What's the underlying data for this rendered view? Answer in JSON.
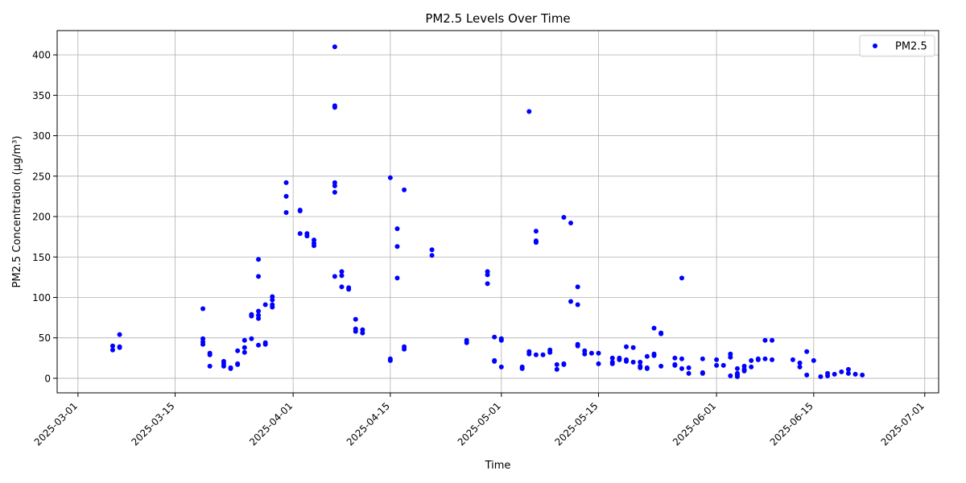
{
  "chart_data": {
    "type": "scatter",
    "title": "PM2.5 Levels Over Time",
    "xlabel": "Time",
    "ylabel": "PM2.5 Concentration (µg/m³)",
    "x_type": "date",
    "xlim": [
      "2025-02-26",
      "2025-07-03"
    ],
    "ylim": [
      -18,
      430
    ],
    "x_ticks": [
      "2025-03-01",
      "2025-03-15",
      "2025-04-01",
      "2025-04-15",
      "2025-05-01",
      "2025-05-15",
      "2025-06-01",
      "2025-06-15",
      "2025-07-01"
    ],
    "y_ticks": [
      0,
      50,
      100,
      150,
      200,
      250,
      300,
      350,
      400
    ],
    "grid": true,
    "legend_position": "top-right",
    "series": [
      {
        "name": "PM2.5",
        "color": "#0000ff",
        "marker": "circle",
        "points": [
          [
            "2025-03-06",
            35
          ],
          [
            "2025-03-06",
            40
          ],
          [
            "2025-03-07",
            39
          ],
          [
            "2025-03-07",
            38
          ],
          [
            "2025-03-07",
            54
          ],
          [
            "2025-03-19",
            86
          ],
          [
            "2025-03-19",
            49
          ],
          [
            "2025-03-19",
            45
          ],
          [
            "2025-03-19",
            42
          ],
          [
            "2025-03-20",
            31
          ],
          [
            "2025-03-20",
            29
          ],
          [
            "2025-03-20",
            15
          ],
          [
            "2025-03-22",
            15
          ],
          [
            "2025-03-22",
            18
          ],
          [
            "2025-03-22",
            21
          ],
          [
            "2025-03-23",
            13
          ],
          [
            "2025-03-23",
            12
          ],
          [
            "2025-03-24",
            34
          ],
          [
            "2025-03-24",
            17
          ],
          [
            "2025-03-24",
            18
          ],
          [
            "2025-03-25",
            47
          ],
          [
            "2025-03-25",
            38
          ],
          [
            "2025-03-25",
            32
          ],
          [
            "2025-03-26",
            79
          ],
          [
            "2025-03-26",
            77
          ],
          [
            "2025-03-26",
            49
          ],
          [
            "2025-03-27",
            147
          ],
          [
            "2025-03-27",
            126
          ],
          [
            "2025-03-27",
            83
          ],
          [
            "2025-03-27",
            78
          ],
          [
            "2025-03-27",
            74
          ],
          [
            "2025-03-27",
            41
          ],
          [
            "2025-03-28",
            91
          ],
          [
            "2025-03-28",
            44
          ],
          [
            "2025-03-28",
            42
          ],
          [
            "2025-03-29",
            101
          ],
          [
            "2025-03-29",
            97
          ],
          [
            "2025-03-29",
            91
          ],
          [
            "2025-03-29",
            88
          ],
          [
            "2025-03-31",
            242
          ],
          [
            "2025-03-31",
            225
          ],
          [
            "2025-03-31",
            205
          ],
          [
            "2025-04-02",
            208
          ],
          [
            "2025-04-02",
            207
          ],
          [
            "2025-04-02",
            179
          ],
          [
            "2025-04-03",
            179
          ],
          [
            "2025-04-03",
            176
          ],
          [
            "2025-04-04",
            171
          ],
          [
            "2025-04-04",
            167
          ],
          [
            "2025-04-04",
            164
          ],
          [
            "2025-04-07",
            410
          ],
          [
            "2025-04-07",
            337
          ],
          [
            "2025-04-07",
            335
          ],
          [
            "2025-04-07",
            242
          ],
          [
            "2025-04-07",
            238
          ],
          [
            "2025-04-07",
            230
          ],
          [
            "2025-04-07",
            126
          ],
          [
            "2025-04-08",
            132
          ],
          [
            "2025-04-08",
            127
          ],
          [
            "2025-04-08",
            113
          ],
          [
            "2025-04-09",
            112
          ],
          [
            "2025-04-09",
            110
          ],
          [
            "2025-04-10",
            73
          ],
          [
            "2025-04-10",
            61
          ],
          [
            "2025-04-10",
            58
          ],
          [
            "2025-04-11",
            60
          ],
          [
            "2025-04-11",
            56
          ],
          [
            "2025-04-15",
            248
          ],
          [
            "2025-04-15",
            24
          ],
          [
            "2025-04-15",
            22
          ],
          [
            "2025-04-16",
            185
          ],
          [
            "2025-04-16",
            163
          ],
          [
            "2025-04-16",
            124
          ],
          [
            "2025-04-17",
            233
          ],
          [
            "2025-04-17",
            39
          ],
          [
            "2025-04-17",
            36
          ],
          [
            "2025-04-21",
            159
          ],
          [
            "2025-04-21",
            152
          ],
          [
            "2025-04-26",
            47
          ],
          [
            "2025-04-26",
            44
          ],
          [
            "2025-04-29",
            132
          ],
          [
            "2025-04-29",
            128
          ],
          [
            "2025-04-29",
            117
          ],
          [
            "2025-04-30",
            51
          ],
          [
            "2025-04-30",
            22
          ],
          [
            "2025-04-30",
            21
          ],
          [
            "2025-05-01",
            49
          ],
          [
            "2025-05-01",
            47
          ],
          [
            "2025-05-01",
            14
          ],
          [
            "2025-05-04",
            14
          ],
          [
            "2025-05-04",
            12
          ],
          [
            "2025-05-05",
            330
          ],
          [
            "2025-05-05",
            33
          ],
          [
            "2025-05-05",
            30
          ],
          [
            "2025-05-06",
            182
          ],
          [
            "2025-05-06",
            170
          ],
          [
            "2025-05-06",
            168
          ],
          [
            "2025-05-06",
            29
          ],
          [
            "2025-05-07",
            29
          ],
          [
            "2025-05-08",
            35
          ],
          [
            "2025-05-08",
            32
          ],
          [
            "2025-05-09",
            17
          ],
          [
            "2025-05-09",
            11
          ],
          [
            "2025-05-10",
            199
          ],
          [
            "2025-05-10",
            18
          ],
          [
            "2025-05-10",
            17
          ],
          [
            "2025-05-11",
            192
          ],
          [
            "2025-05-11",
            95
          ],
          [
            "2025-05-12",
            113
          ],
          [
            "2025-05-12",
            91
          ],
          [
            "2025-05-12",
            42
          ],
          [
            "2025-05-12",
            40
          ],
          [
            "2025-05-13",
            34
          ],
          [
            "2025-05-13",
            30
          ],
          [
            "2025-05-14",
            31
          ],
          [
            "2025-05-15",
            31
          ],
          [
            "2025-05-15",
            18
          ],
          [
            "2025-05-17",
            25
          ],
          [
            "2025-05-17",
            20
          ],
          [
            "2025-05-17",
            18
          ],
          [
            "2025-05-18",
            25
          ],
          [
            "2025-05-18",
            23
          ],
          [
            "2025-05-19",
            39
          ],
          [
            "2025-05-19",
            23
          ],
          [
            "2025-05-19",
            21
          ],
          [
            "2025-05-20",
            38
          ],
          [
            "2025-05-20",
            20
          ],
          [
            "2025-05-21",
            20
          ],
          [
            "2025-05-21",
            15
          ],
          [
            "2025-05-21",
            13
          ],
          [
            "2025-05-22",
            27
          ],
          [
            "2025-05-22",
            13
          ],
          [
            "2025-05-22",
            12
          ],
          [
            "2025-05-23",
            62
          ],
          [
            "2025-05-23",
            30
          ],
          [
            "2025-05-23",
            28
          ],
          [
            "2025-05-24",
            56
          ],
          [
            "2025-05-24",
            55
          ],
          [
            "2025-05-24",
            15
          ],
          [
            "2025-05-26",
            25
          ],
          [
            "2025-05-26",
            17
          ],
          [
            "2025-05-26",
            16
          ],
          [
            "2025-05-27",
            124
          ],
          [
            "2025-05-27",
            24
          ],
          [
            "2025-05-27",
            12
          ],
          [
            "2025-05-28",
            13
          ],
          [
            "2025-05-28",
            6
          ],
          [
            "2025-05-30",
            24
          ],
          [
            "2025-05-30",
            7
          ],
          [
            "2025-05-30",
            6
          ],
          [
            "2025-06-01",
            23
          ],
          [
            "2025-06-01",
            16
          ],
          [
            "2025-06-02",
            16
          ],
          [
            "2025-06-03",
            30
          ],
          [
            "2025-06-03",
            26
          ],
          [
            "2025-06-03",
            3
          ],
          [
            "2025-06-04",
            12
          ],
          [
            "2025-06-04",
            6
          ],
          [
            "2025-06-04",
            4
          ],
          [
            "2025-06-04",
            2
          ],
          [
            "2025-06-05",
            15
          ],
          [
            "2025-06-05",
            11
          ],
          [
            "2025-06-05",
            9
          ],
          [
            "2025-06-06",
            22
          ],
          [
            "2025-06-06",
            14
          ],
          [
            "2025-06-07",
            24
          ],
          [
            "2025-06-07",
            23
          ],
          [
            "2025-06-08",
            47
          ],
          [
            "2025-06-08",
            24
          ],
          [
            "2025-06-09",
            47
          ],
          [
            "2025-06-09",
            23
          ],
          [
            "2025-06-12",
            23
          ],
          [
            "2025-06-13",
            19
          ],
          [
            "2025-06-13",
            14
          ],
          [
            "2025-06-14",
            33
          ],
          [
            "2025-06-14",
            4
          ],
          [
            "2025-06-15",
            22
          ],
          [
            "2025-06-16",
            2
          ],
          [
            "2025-06-17",
            6
          ],
          [
            "2025-06-17",
            3
          ],
          [
            "2025-06-18",
            5
          ],
          [
            "2025-06-19",
            8
          ],
          [
            "2025-06-20",
            11
          ],
          [
            "2025-06-20",
            6
          ],
          [
            "2025-06-21",
            5
          ],
          [
            "2025-06-22",
            4
          ]
        ]
      }
    ]
  }
}
